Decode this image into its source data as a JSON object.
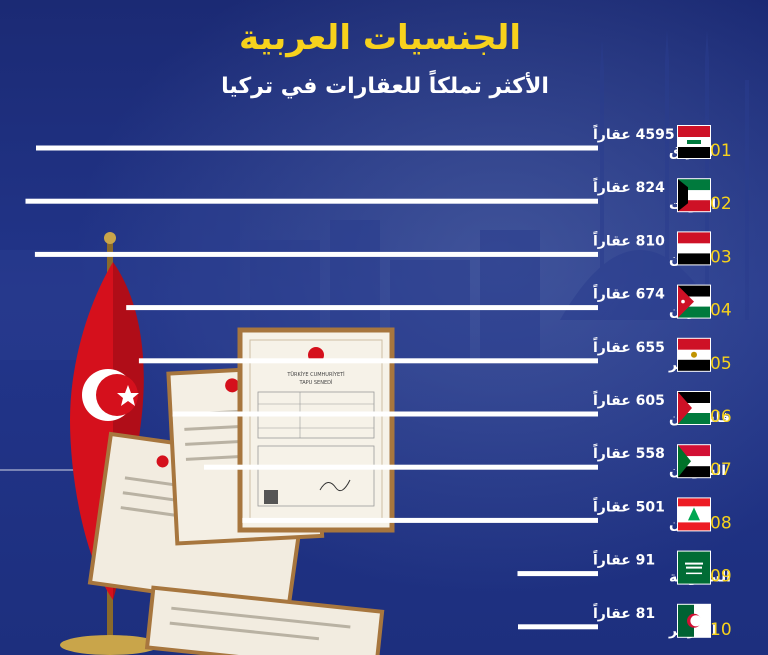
{
  "title": "الجنسيات العربية",
  "subtitle": "الأكثر تملكاً للعقارات في تركيا",
  "chart_data": {
    "type": "bar",
    "orientation": "horizontal",
    "title": "الجنسيات العربية",
    "subtitle": "الأكثر تملكاً للعقارات في تركيا",
    "unit": "عقاراً",
    "categories": [
      "العراق",
      "الكويت",
      "اليمن",
      "الأردن",
      "مصر",
      "فلسطين",
      "السودان",
      "لبنان",
      "السعودية",
      "الجزائر"
    ],
    "ranks": [
      "01",
      "02",
      "03",
      "04",
      "05",
      "06",
      "07",
      "08",
      "09",
      "10"
    ],
    "values": [
      4595,
      824,
      810,
      674,
      655,
      605,
      558,
      501,
      91,
      81
    ],
    "value_labels": [
      "4595 عقاراً",
      "824 عقاراً",
      "810 عقاراً",
      "674 عقاراً",
      "655 عقاراً",
      "605 عقاراً",
      "558 عقاراً",
      "501 عقاراً",
      "91 عقاراً",
      "81 عقاراً"
    ],
    "flag_icons": [
      "iraq-flag-icon",
      "kuwait-flag-icon",
      "yemen-flag-icon",
      "jordan-flag-icon",
      "egypt-flag-icon",
      "palestine-flag-icon",
      "sudan-flag-icon",
      "lebanon-flag-icon",
      "saudi-arabia-flag-icon",
      "algeria-flag-icon"
    ],
    "bar_color": "#ffffff",
    "rank_color": "#f7d21c",
    "title_color": "#f7d21c"
  },
  "document_text": {
    "header": "TÜRKİYE CUMHURİYETİ",
    "subheader": "TAPU SENEDİ"
  }
}
